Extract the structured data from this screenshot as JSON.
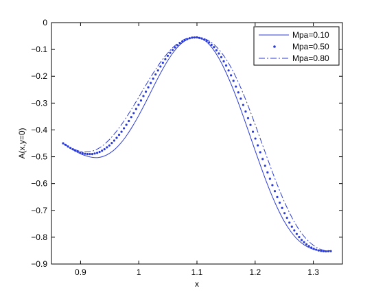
{
  "chart_data": {
    "type": "line",
    "title": "",
    "xlabel": "x",
    "ylabel": "A(x,y=0)",
    "xlim": [
      0.85,
      1.35
    ],
    "ylim": [
      -0.9,
      0
    ],
    "xticks": [
      0.9,
      1,
      1.1,
      1.2,
      1.3
    ],
    "xtick_labels": [
      "0.9",
      "1",
      "1.1",
      "1.2",
      "1.3"
    ],
    "yticks": [
      0,
      -0.1,
      -0.2,
      -0.3,
      -0.4,
      -0.5,
      -0.6,
      -0.7,
      -0.8,
      -0.9
    ],
    "ytick_labels": [
      "0",
      "−0.1",
      "−0.2",
      "−0.3",
      "−0.4",
      "−0.5",
      "−0.6",
      "−0.7",
      "−0.8",
      "−0.9"
    ],
    "grid": false,
    "legend_position": "top-right",
    "color": "#2b3bd6",
    "series": [
      {
        "name": "Mpa=0.10",
        "style": "solid",
        "x": [
          0.87,
          0.88,
          0.89,
          0.9,
          0.91,
          0.92,
          0.93,
          0.94,
          0.95,
          0.96,
          0.97,
          0.98,
          0.99,
          1.0,
          1.01,
          1.02,
          1.03,
          1.04,
          1.05,
          1.06,
          1.07,
          1.08,
          1.09,
          1.1,
          1.11,
          1.12,
          1.13,
          1.14,
          1.15,
          1.16,
          1.17,
          1.18,
          1.19,
          1.2,
          1.21,
          1.22,
          1.23,
          1.24,
          1.25,
          1.26,
          1.27,
          1.28,
          1.29,
          1.3,
          1.31,
          1.32,
          1.33
        ],
        "y": [
          -0.45,
          -0.465,
          -0.478,
          -0.489,
          -0.497,
          -0.502,
          -0.503,
          -0.498,
          -0.487,
          -0.47,
          -0.447,
          -0.418,
          -0.384,
          -0.346,
          -0.305,
          -0.262,
          -0.219,
          -0.178,
          -0.141,
          -0.109,
          -0.084,
          -0.067,
          -0.057,
          -0.055,
          -0.062,
          -0.079,
          -0.106,
          -0.142,
          -0.186,
          -0.236,
          -0.292,
          -0.352,
          -0.414,
          -0.477,
          -0.538,
          -0.597,
          -0.651,
          -0.699,
          -0.741,
          -0.775,
          -0.802,
          -0.822,
          -0.836,
          -0.845,
          -0.85,
          -0.852,
          -0.85
        ]
      },
      {
        "name": "Mpa=0.50",
        "style": "dotted",
        "x": [
          0.87,
          0.88,
          0.89,
          0.9,
          0.91,
          0.92,
          0.93,
          0.94,
          0.95,
          0.96,
          0.97,
          0.98,
          0.99,
          1.0,
          1.01,
          1.02,
          1.03,
          1.04,
          1.05,
          1.06,
          1.07,
          1.08,
          1.09,
          1.1,
          1.11,
          1.12,
          1.13,
          1.14,
          1.15,
          1.16,
          1.17,
          1.18,
          1.19,
          1.2,
          1.21,
          1.22,
          1.23,
          1.24,
          1.25,
          1.26,
          1.27,
          1.28,
          1.29,
          1.3,
          1.31,
          1.32,
          1.33
        ],
        "y": [
          -0.45,
          -0.464,
          -0.476,
          -0.485,
          -0.49,
          -0.49,
          -0.485,
          -0.474,
          -0.457,
          -0.435,
          -0.408,
          -0.377,
          -0.342,
          -0.305,
          -0.266,
          -0.227,
          -0.189,
          -0.154,
          -0.123,
          -0.097,
          -0.077,
          -0.064,
          -0.056,
          -0.055,
          -0.06,
          -0.072,
          -0.093,
          -0.122,
          -0.159,
          -0.203,
          -0.254,
          -0.31,
          -0.369,
          -0.43,
          -0.491,
          -0.551,
          -0.608,
          -0.661,
          -0.708,
          -0.75,
          -0.784,
          -0.811,
          -0.83,
          -0.843,
          -0.85,
          -0.853,
          -0.852
        ]
      },
      {
        "name": "Mpa=0.80",
        "style": "dashdot",
        "x": [
          0.87,
          0.88,
          0.89,
          0.9,
          0.91,
          0.92,
          0.93,
          0.94,
          0.95,
          0.96,
          0.97,
          0.98,
          0.99,
          1.0,
          1.01,
          1.02,
          1.03,
          1.04,
          1.05,
          1.06,
          1.07,
          1.08,
          1.09,
          1.1,
          1.11,
          1.12,
          1.13,
          1.14,
          1.15,
          1.16,
          1.17,
          1.18,
          1.19,
          1.2,
          1.21,
          1.22,
          1.23,
          1.24,
          1.25,
          1.26,
          1.27,
          1.28,
          1.29,
          1.3,
          1.31,
          1.32,
          1.33
        ],
        "y": [
          -0.45,
          -0.463,
          -0.473,
          -0.48,
          -0.482,
          -0.479,
          -0.47,
          -0.455,
          -0.435,
          -0.41,
          -0.381,
          -0.349,
          -0.314,
          -0.278,
          -0.241,
          -0.205,
          -0.171,
          -0.14,
          -0.113,
          -0.09,
          -0.073,
          -0.061,
          -0.055,
          -0.054,
          -0.058,
          -0.067,
          -0.083,
          -0.106,
          -0.136,
          -0.173,
          -0.217,
          -0.267,
          -0.322,
          -0.38,
          -0.44,
          -0.5,
          -0.559,
          -0.615,
          -0.667,
          -0.713,
          -0.753,
          -0.786,
          -0.811,
          -0.83,
          -0.843,
          -0.85,
          -0.852
        ]
      }
    ]
  }
}
